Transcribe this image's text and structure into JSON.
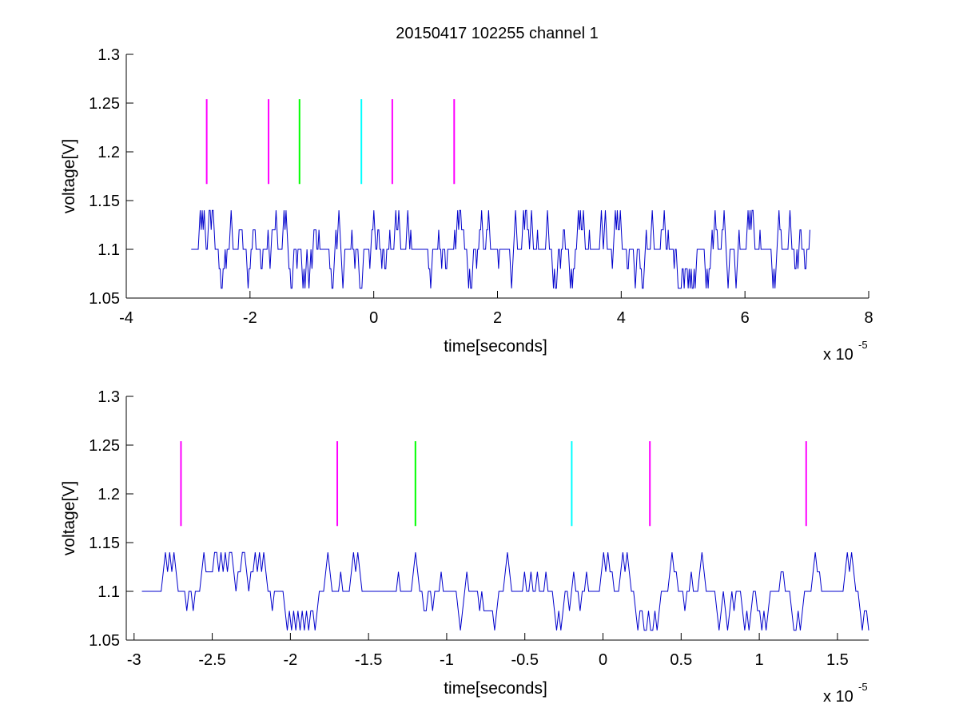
{
  "figure": {
    "title": "20150417 102255 channel 1"
  },
  "chart_data": [
    {
      "type": "line",
      "title": "20150417 102255 channel 1",
      "xlabel": "time[seconds]",
      "ylabel": "voltage[V]",
      "x_exponent_base": "x 10",
      "x_exponent_power": "-5",
      "xlim": [
        -4,
        8
      ],
      "ylim": [
        1.05,
        1.3
      ],
      "x_ticks": [
        -4,
        -2,
        0,
        2,
        4,
        6,
        8
      ],
      "x_tick_labels": [
        "-4",
        "-2",
        "0",
        "2",
        "4",
        "6",
        "8"
      ],
      "y_ticks": [
        1.05,
        1.1,
        1.15,
        1.2,
        1.25,
        1.3
      ],
      "y_tick_labels": [
        "1.05",
        "1.1",
        "1.15",
        "1.2",
        "1.25",
        "1.3"
      ],
      "grid": false,
      "signal": {
        "color": "#0000cc",
        "x_start": -2.95,
        "x_end": 7.05,
        "baseline": 1.1,
        "levels": [
          1.06,
          1.08,
          1.1,
          1.12,
          1.14
        ],
        "samples": 620,
        "seed": 417
      },
      "markers": [
        {
          "x": -2.7,
          "color": "#ff00ff",
          "y_low": 1.167,
          "y_high": 1.254
        },
        {
          "x": -1.7,
          "color": "#ff00ff",
          "y_low": 1.167,
          "y_high": 1.254
        },
        {
          "x": -1.2,
          "color": "#00ff00",
          "y_low": 1.167,
          "y_high": 1.254
        },
        {
          "x": -0.2,
          "color": "#00ffff",
          "y_low": 1.167,
          "y_high": 1.254
        },
        {
          "x": 0.3,
          "color": "#ff00ff",
          "y_low": 1.167,
          "y_high": 1.254
        },
        {
          "x": 1.3,
          "color": "#ff00ff",
          "y_low": 1.167,
          "y_high": 1.254
        }
      ]
    },
    {
      "type": "line",
      "title": "",
      "xlabel": "time[seconds]",
      "ylabel": "voltage[V]",
      "x_exponent_base": "x 10",
      "x_exponent_power": "-5",
      "xlim": [
        -3.05,
        1.7
      ],
      "ylim": [
        1.05,
        1.3
      ],
      "x_ticks": [
        -3,
        -2.5,
        -2,
        -1.5,
        -1,
        -0.5,
        0,
        0.5,
        1,
        1.5
      ],
      "x_tick_labels": [
        "-3",
        "-2.5",
        "-2",
        "-1.5",
        "-1",
        "-0.5",
        "0",
        "0.5",
        "1",
        "1.5"
      ],
      "y_ticks": [
        1.05,
        1.1,
        1.15,
        1.2,
        1.25,
        1.3
      ],
      "y_tick_labels": [
        "1.05",
        "1.1",
        "1.15",
        "1.2",
        "1.25",
        "1.3"
      ],
      "grid": false,
      "signal": {
        "color": "#0000cc",
        "x_start": -2.95,
        "x_end": 1.7,
        "baseline": 1.1,
        "levels": [
          1.06,
          1.08,
          1.1,
          1.12,
          1.14
        ],
        "samples": 340,
        "seed": 255
      },
      "markers": [
        {
          "x": -2.7,
          "color": "#ff00ff",
          "y_low": 1.167,
          "y_high": 1.254
        },
        {
          "x": -1.7,
          "color": "#ff00ff",
          "y_low": 1.167,
          "y_high": 1.254
        },
        {
          "x": -1.2,
          "color": "#00ff00",
          "y_low": 1.167,
          "y_high": 1.254
        },
        {
          "x": -0.2,
          "color": "#00ffff",
          "y_low": 1.167,
          "y_high": 1.254
        },
        {
          "x": 0.3,
          "color": "#ff00ff",
          "y_low": 1.167,
          "y_high": 1.254
        },
        {
          "x": 1.3,
          "color": "#ff00ff",
          "y_low": 1.167,
          "y_high": 1.254
        }
      ]
    }
  ]
}
